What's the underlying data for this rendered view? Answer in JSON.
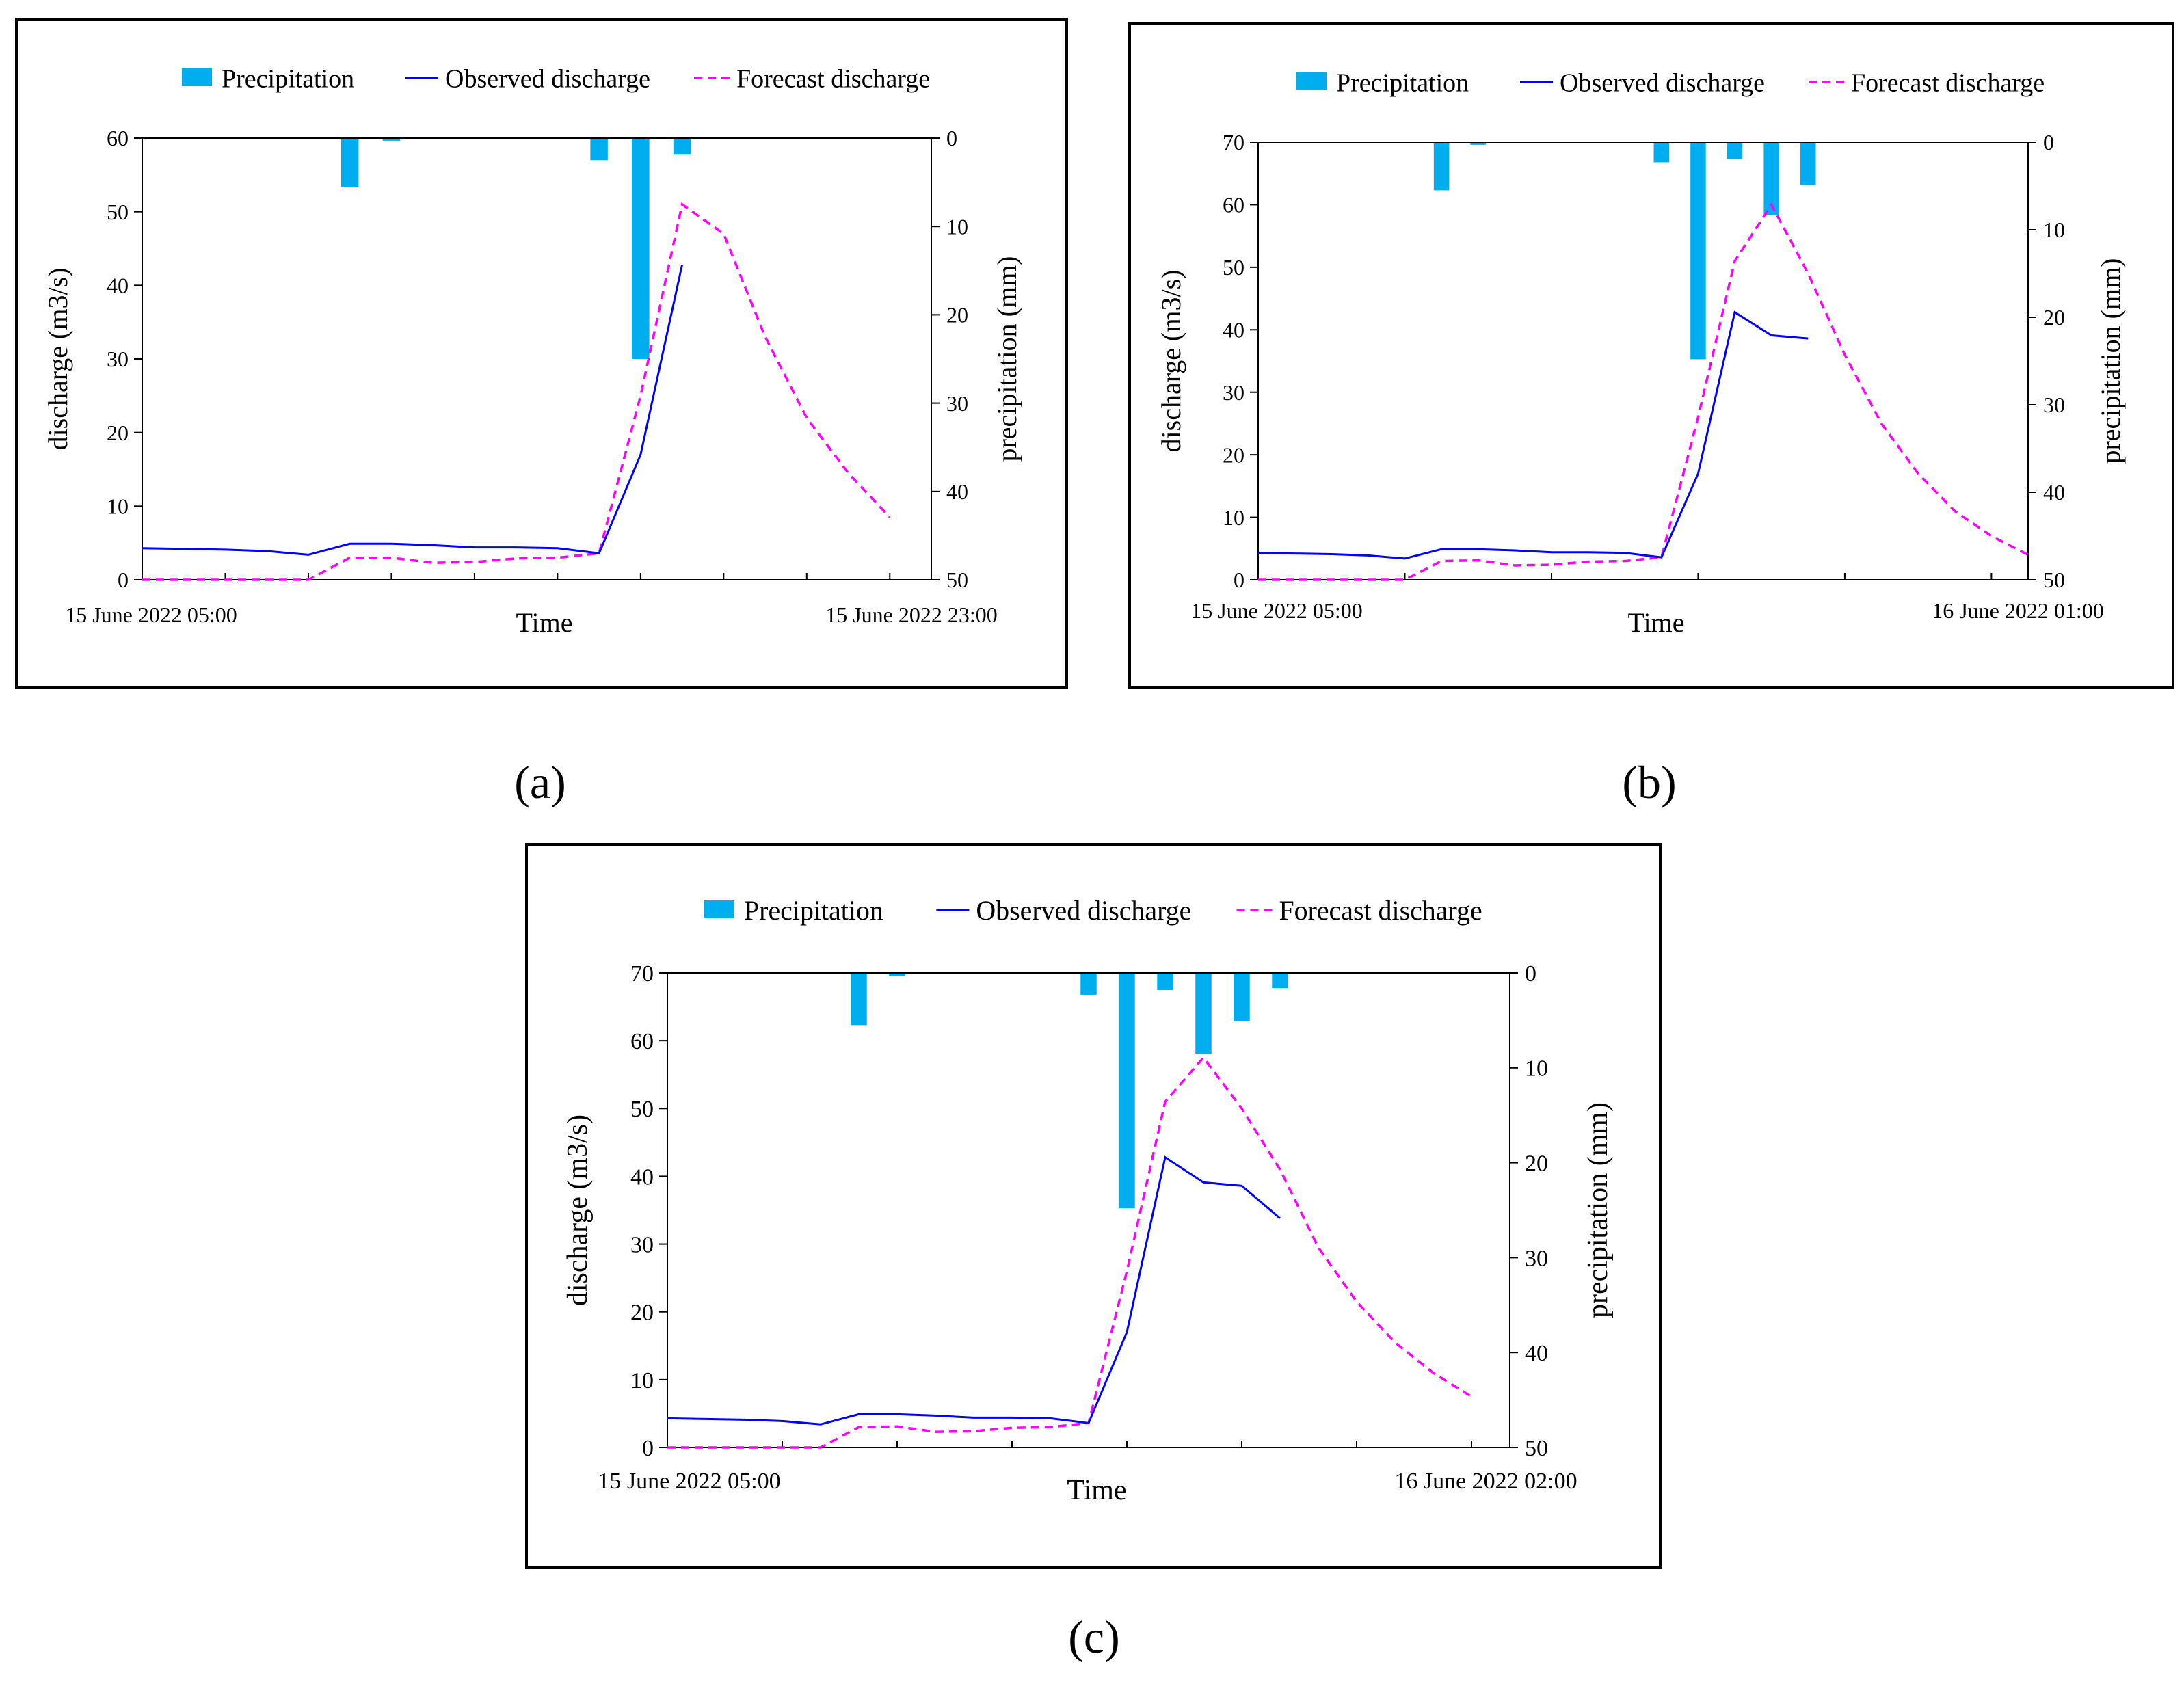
{
  "colors": {
    "precip": "#00AEEF",
    "observed": "#0000FF",
    "forecast": "#FF00FF",
    "axis": "#000000"
  },
  "chart_data": [
    {
      "type": "bar+line",
      "panel_label": "(a)",
      "legend": [
        "Precipitation",
        "Observed discharge",
        "Forecast discharge"
      ],
      "xlabel": "Time",
      "x_start_label": "15 June 2022 05:00",
      "x_end_label": "15 June 2022 23:00",
      "x_range": [
        0,
        19
      ],
      "tick_hours": [
        2,
        4,
        6,
        8,
        10,
        12,
        14,
        16,
        18
      ],
      "ylabel_left": "discharge (m3/s)",
      "ylabel_right": "precipitation (mm)",
      "y_left_range": [
        0,
        60
      ],
      "y_left_ticks": [
        0,
        10,
        20,
        30,
        40,
        50,
        60
      ],
      "y_right_range": [
        0,
        50
      ],
      "y_right_ticks": [
        0,
        10,
        20,
        30,
        40,
        50
      ],
      "precipitation": [
        {
          "hour": 5,
          "mm": 5.5
        },
        {
          "hour": 6,
          "mm": 0.3
        },
        {
          "hour": 11,
          "mm": 2.5
        },
        {
          "hour": 12,
          "mm": 25
        },
        {
          "hour": 13,
          "mm": 1.8
        }
      ],
      "observed": [
        {
          "hour": 0,
          "q": 4.3
        },
        {
          "hour": 1,
          "q": 4.2
        },
        {
          "hour": 2,
          "q": 4.1
        },
        {
          "hour": 3,
          "q": 3.9
        },
        {
          "hour": 4,
          "q": 3.4
        },
        {
          "hour": 5,
          "q": 4.9
        },
        {
          "hour": 6,
          "q": 4.9
        },
        {
          "hour": 7,
          "q": 4.7
        },
        {
          "hour": 8,
          "q": 4.4
        },
        {
          "hour": 9,
          "q": 4.4
        },
        {
          "hour": 10,
          "q": 4.3
        },
        {
          "hour": 11,
          "q": 3.6
        },
        {
          "hour": 12,
          "q": 17.0
        },
        {
          "hour": 13,
          "q": 42.8
        }
      ],
      "forecast": [
        {
          "hour": 0,
          "q": 0
        },
        {
          "hour": 1,
          "q": 0
        },
        {
          "hour": 2,
          "q": 0
        },
        {
          "hour": 3,
          "q": 0
        },
        {
          "hour": 4,
          "q": 0
        },
        {
          "hour": 5,
          "q": 3.0
        },
        {
          "hour": 6,
          "q": 3.0
        },
        {
          "hour": 7,
          "q": 2.3
        },
        {
          "hour": 8,
          "q": 2.4
        },
        {
          "hour": 9,
          "q": 2.9
        },
        {
          "hour": 10,
          "q": 3.0
        },
        {
          "hour": 11,
          "q": 3.6
        },
        {
          "hour": 12,
          "q": 25.0
        },
        {
          "hour": 13,
          "q": 51.0
        },
        {
          "hour": 14,
          "q": 47.0
        },
        {
          "hour": 15,
          "q": 33.0
        },
        {
          "hour": 16,
          "q": 22.0
        },
        {
          "hour": 17,
          "q": 14.5
        },
        {
          "hour": 18,
          "q": 8.5
        }
      ]
    },
    {
      "type": "bar+line",
      "panel_label": "(b)",
      "legend": [
        "Precipitation",
        "Observed discharge",
        "Forecast discharge"
      ],
      "xlabel": "Time",
      "x_start_label": "15 June 2022 05:00",
      "x_end_label": "16 June 2022 01:00",
      "x_range": [
        0,
        21
      ],
      "tick_hours": [
        4,
        8,
        12,
        16,
        20
      ],
      "ylabel_left": "discharge (m3/s)",
      "ylabel_right": "precipitation (mm)",
      "y_left_range": [
        0,
        70
      ],
      "y_left_ticks": [
        0,
        10,
        20,
        30,
        40,
        50,
        60,
        70
      ],
      "y_right_range": [
        0,
        50
      ],
      "y_right_ticks": [
        0,
        10,
        20,
        30,
        40,
        50
      ],
      "precipitation": [
        {
          "hour": 5,
          "mm": 5.5
        },
        {
          "hour": 6,
          "mm": 0.3
        },
        {
          "hour": 11,
          "mm": 2.3
        },
        {
          "hour": 12,
          "mm": 24.8
        },
        {
          "hour": 13,
          "mm": 1.9
        },
        {
          "hour": 14,
          "mm": 8.3
        },
        {
          "hour": 15,
          "mm": 4.9
        }
      ],
      "observed": [
        {
          "hour": 0,
          "q": 4.3
        },
        {
          "hour": 1,
          "q": 4.2
        },
        {
          "hour": 2,
          "q": 4.1
        },
        {
          "hour": 3,
          "q": 3.9
        },
        {
          "hour": 4,
          "q": 3.4
        },
        {
          "hour": 5,
          "q": 4.9
        },
        {
          "hour": 6,
          "q": 4.9
        },
        {
          "hour": 7,
          "q": 4.7
        },
        {
          "hour": 8,
          "q": 4.4
        },
        {
          "hour": 9,
          "q": 4.4
        },
        {
          "hour": 10,
          "q": 4.3
        },
        {
          "hour": 11,
          "q": 3.6
        },
        {
          "hour": 12,
          "q": 17.0
        },
        {
          "hour": 13,
          "q": 42.8
        },
        {
          "hour": 14,
          "q": 39.1
        },
        {
          "hour": 15,
          "q": 38.6
        }
      ],
      "forecast": [
        {
          "hour": 0,
          "q": 0
        },
        {
          "hour": 1,
          "q": 0
        },
        {
          "hour": 2,
          "q": 0
        },
        {
          "hour": 3,
          "q": 0
        },
        {
          "hour": 4,
          "q": 0
        },
        {
          "hour": 5,
          "q": 3.0
        },
        {
          "hour": 6,
          "q": 3.1
        },
        {
          "hour": 7,
          "q": 2.3
        },
        {
          "hour": 8,
          "q": 2.4
        },
        {
          "hour": 9,
          "q": 2.9
        },
        {
          "hour": 10,
          "q": 3.0
        },
        {
          "hour": 11,
          "q": 3.6
        },
        {
          "hour": 12,
          "q": 26.0
        },
        {
          "hour": 13,
          "q": 51.0
        },
        {
          "hour": 14,
          "q": 60.0
        },
        {
          "hour": 15,
          "q": 49.0
        },
        {
          "hour": 16,
          "q": 36.0
        },
        {
          "hour": 17,
          "q": 25.0
        },
        {
          "hour": 18,
          "q": 17.0
        },
        {
          "hour": 19,
          "q": 11.0
        },
        {
          "hour": 20,
          "q": 7.0
        },
        {
          "hour": 21,
          "q": 4.0
        }
      ]
    },
    {
      "type": "bar+line",
      "panel_label": "(c)",
      "legend": [
        "Precipitation",
        "Observed discharge",
        "Forecast discharge"
      ],
      "xlabel": "Time",
      "x_start_label": "15 June 2022 05:00",
      "x_end_label": "16 June 2022 02:00",
      "x_range": [
        0,
        22
      ],
      "tick_hours": [
        3,
        6,
        9,
        12,
        15,
        18,
        21
      ],
      "ylabel_left": "discharge (m3/s)",
      "ylabel_right": "precipitation (mm)",
      "y_left_range": [
        0,
        70
      ],
      "y_left_ticks": [
        0,
        10,
        20,
        30,
        40,
        50,
        60,
        70
      ],
      "y_right_range": [
        0,
        50
      ],
      "y_right_ticks": [
        0,
        10,
        20,
        30,
        40,
        50
      ],
      "precipitation": [
        {
          "hour": 5,
          "mm": 5.5
        },
        {
          "hour": 6,
          "mm": 0.3
        },
        {
          "hour": 11,
          "mm": 2.3
        },
        {
          "hour": 12,
          "mm": 24.8
        },
        {
          "hour": 13,
          "mm": 1.8
        },
        {
          "hour": 14,
          "mm": 8.5
        },
        {
          "hour": 15,
          "mm": 5.1
        },
        {
          "hour": 16,
          "mm": 1.6
        }
      ],
      "observed": [
        {
          "hour": 0,
          "q": 4.3
        },
        {
          "hour": 1,
          "q": 4.2
        },
        {
          "hour": 2,
          "q": 4.1
        },
        {
          "hour": 3,
          "q": 3.9
        },
        {
          "hour": 4,
          "q": 3.4
        },
        {
          "hour": 5,
          "q": 4.9
        },
        {
          "hour": 6,
          "q": 4.9
        },
        {
          "hour": 7,
          "q": 4.7
        },
        {
          "hour": 8,
          "q": 4.4
        },
        {
          "hour": 9,
          "q": 4.4
        },
        {
          "hour": 10,
          "q": 4.3
        },
        {
          "hour": 11,
          "q": 3.6
        },
        {
          "hour": 12,
          "q": 17.0
        },
        {
          "hour": 13,
          "q": 42.8
        },
        {
          "hour": 14,
          "q": 39.1
        },
        {
          "hour": 15,
          "q": 38.6
        },
        {
          "hour": 16,
          "q": 33.8
        }
      ],
      "forecast": [
        {
          "hour": 0,
          "q": 0
        },
        {
          "hour": 1,
          "q": 0
        },
        {
          "hour": 2,
          "q": 0
        },
        {
          "hour": 3,
          "q": 0
        },
        {
          "hour": 4,
          "q": 0
        },
        {
          "hour": 5,
          "q": 3.0
        },
        {
          "hour": 6,
          "q": 3.1
        },
        {
          "hour": 7,
          "q": 2.3
        },
        {
          "hour": 8,
          "q": 2.4
        },
        {
          "hour": 9,
          "q": 2.9
        },
        {
          "hour": 10,
          "q": 3.0
        },
        {
          "hour": 11,
          "q": 3.6
        },
        {
          "hour": 12,
          "q": 26.0
        },
        {
          "hour": 13,
          "q": 51.0
        },
        {
          "hour": 14,
          "q": 57.5
        },
        {
          "hour": 15,
          "q": 50.0
        },
        {
          "hour": 16,
          "q": 41.0
        },
        {
          "hour": 17,
          "q": 29.5
        },
        {
          "hour": 18,
          "q": 21.5
        },
        {
          "hour": 19,
          "q": 15.5
        },
        {
          "hour": 20,
          "q": 11.0
        },
        {
          "hour": 21,
          "q": 7.5
        }
      ]
    }
  ]
}
